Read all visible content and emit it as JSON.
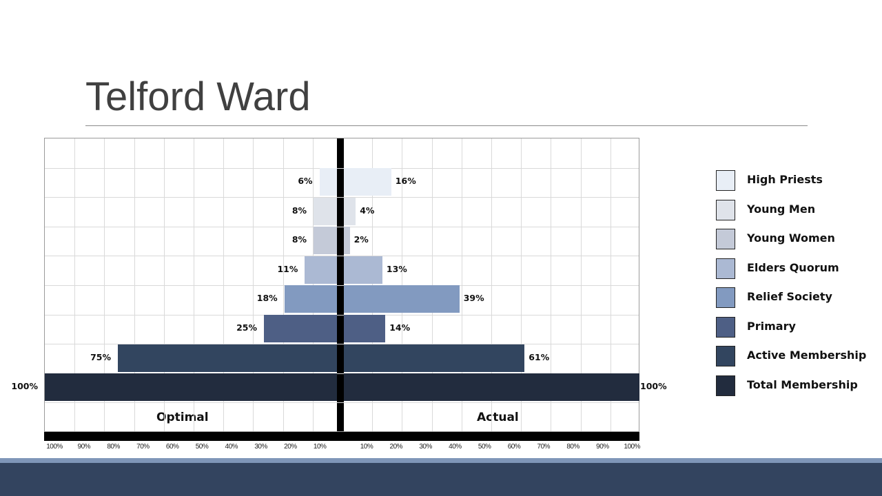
{
  "slide": {
    "title": "Telford Ward"
  },
  "chart_data": {
    "type": "bar",
    "orientation": "horizontal-butterfly",
    "title": "Telford Ward",
    "left_label": "Optimal",
    "right_label": "Actual",
    "categories": [
      "High Priests",
      "Young Men",
      "Young Women",
      "Elders Quorum",
      "Relief Society",
      "Primary",
      "Active Membership",
      "Total Membership"
    ],
    "series": [
      {
        "name": "Optimal",
        "values": [
          6,
          8,
          8,
          11,
          18,
          25,
          75,
          100
        ]
      },
      {
        "name": "Actual",
        "values": [
          16,
          4,
          2,
          13,
          39,
          14,
          61,
          100
        ]
      }
    ],
    "colors": [
      "#e8eef6",
      "#dfe3ea",
      "#c4cad8",
      "#abb9d3",
      "#829ac0",
      "#4e5f85",
      "#32455f",
      "#222c3e"
    ],
    "left_value_labels": [
      "6%",
      "8%",
      "8%",
      "11%",
      "18%",
      "25%",
      "75%",
      "100%"
    ],
    "right_value_labels": [
      "16%",
      "4%",
      "2%",
      "13%",
      "39%",
      "14%",
      "61%",
      "100%"
    ],
    "x_ticks_left": [
      "100%",
      "90%",
      "80%",
      "70%",
      "60%",
      "50%",
      "40%",
      "30%",
      "20%",
      "10%"
    ],
    "x_ticks_right": [
      "10%",
      "20%",
      "30%",
      "40%",
      "50%",
      "60%",
      "70%",
      "80%",
      "90%",
      "100%"
    ],
    "xlim": [
      0,
      100
    ],
    "grid": true,
    "legend_position": "right"
  },
  "legend": {
    "items": [
      {
        "label": "High Priests",
        "color": "#e8eef6"
      },
      {
        "label": "Young Men",
        "color": "#dfe3ea"
      },
      {
        "label": "Young Women",
        "color": "#c4cad8"
      },
      {
        "label": "Elders Quorum",
        "color": "#abb9d3"
      },
      {
        "label": "Relief Society",
        "color": "#829ac0"
      },
      {
        "label": "Primary",
        "color": "#4e5f85"
      },
      {
        "label": "Active Membership",
        "color": "#32455f"
      },
      {
        "label": "Total Membership",
        "color": "#222c3e"
      }
    ]
  },
  "theme": {
    "footer_light": "#7f96b8",
    "footer_dark": "#33445f"
  }
}
